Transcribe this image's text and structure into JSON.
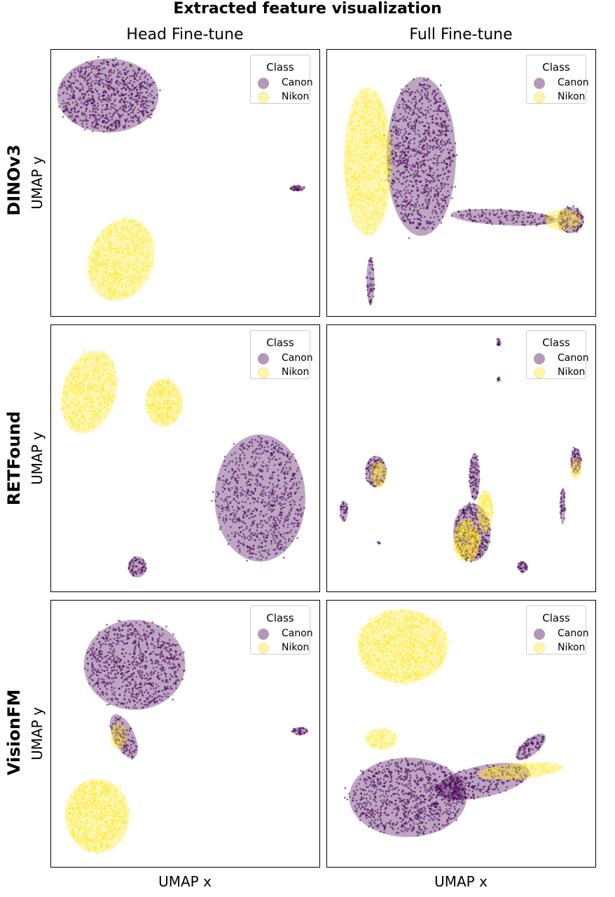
{
  "title": "Extracted feature visualization",
  "columns": [
    "Head Fine-tune",
    "Full Fine-tune"
  ],
  "rows": [
    "DINOv3",
    "RETFound",
    "VisionFM"
  ],
  "axis": {
    "xlabel": "UMAP x",
    "ylabel": "UMAP y"
  },
  "legend": {
    "title": "Class",
    "items": [
      {
        "label": "Canon",
        "color": "#440154",
        "icon": "circle-marker"
      },
      {
        "label": "Nikon",
        "color": "#fde725",
        "icon": "circle-marker"
      }
    ],
    "placement": "upper-right"
  },
  "chart_data": [
    {
      "type": "scatter",
      "title": "Head Fine-tune",
      "row": "DINOv3",
      "xlabel": "UMAP x",
      "ylabel": "UMAP y",
      "ticks": false,
      "grid": false,
      "xlim": [
        0,
        100
      ],
      "ylim": [
        0,
        100
      ],
      "series": [
        {
          "name": "Canon",
          "color": "#440154",
          "clusters": [
            {
              "cx": 21,
              "cy": 83,
              "rx": 19,
              "ry": 14,
              "n": 1500,
              "angle": 0
            },
            {
              "cx": 92,
              "cy": 48,
              "rx": 3,
              "ry": 1,
              "n": 60,
              "angle": 0
            }
          ]
        },
        {
          "name": "Nikon",
          "color": "#fde725",
          "clusters": [
            {
              "cx": 26,
              "cy": 21,
              "rx": 12,
              "ry": 16,
              "n": 950,
              "angle": -20
            }
          ]
        }
      ]
    },
    {
      "type": "scatter",
      "title": "Full Fine-tune",
      "row": "DINOv3",
      "xlabel": "UMAP x",
      "ylabel": "UMAP y",
      "ticks": false,
      "grid": false,
      "xlim": [
        0,
        100
      ],
      "ylim": [
        0,
        100
      ],
      "series": [
        {
          "name": "Canon",
          "color": "#440154",
          "clusters": [
            {
              "cx": 35,
              "cy": 60,
              "rx": 13,
              "ry": 30,
              "n": 1800,
              "angle": 0
            },
            {
              "cx": 66,
              "cy": 37,
              "rx": 20,
              "ry": 3,
              "n": 260,
              "angle": -3
            },
            {
              "cx": 91,
              "cy": 36,
              "rx": 5,
              "ry": 5,
              "n": 200,
              "angle": 0
            },
            {
              "cx": 16,
              "cy": 13,
              "rx": 1.5,
              "ry": 9,
              "n": 80,
              "angle": 0
            }
          ]
        },
        {
          "name": "Nikon",
          "color": "#fde725",
          "clusters": [
            {
              "cx": 15,
              "cy": 58,
              "rx": 9,
              "ry": 28,
              "n": 1100,
              "angle": 0
            },
            {
              "cx": 88,
              "cy": 36,
              "rx": 7,
              "ry": 4,
              "n": 90,
              "angle": 0
            }
          ]
        }
      ]
    },
    {
      "type": "scatter",
      "title": "Head Fine-tune",
      "row": "RETFound",
      "xlabel": "UMAP x",
      "ylabel": "UMAP y",
      "ticks": false,
      "grid": false,
      "xlim": [
        0,
        100
      ],
      "ylim": [
        0,
        100
      ],
      "series": [
        {
          "name": "Canon",
          "color": "#440154",
          "clusters": [
            {
              "cx": 78,
              "cy": 35,
              "rx": 17,
              "ry": 24,
              "n": 1500,
              "angle": 0
            },
            {
              "cx": 32,
              "cy": 9,
              "rx": 3.5,
              "ry": 4,
              "n": 120,
              "angle": 0
            }
          ]
        },
        {
          "name": "Nikon",
          "color": "#fde725",
          "clusters": [
            {
              "cx": 14,
              "cy": 75,
              "rx": 10,
              "ry": 16,
              "n": 800,
              "angle": -15
            },
            {
              "cx": 42,
              "cy": 71,
              "rx": 7,
              "ry": 9,
              "n": 450,
              "angle": 0
            }
          ]
        }
      ]
    },
    {
      "type": "scatter",
      "title": "Full Fine-tune",
      "row": "RETFound",
      "xlabel": "UMAP x",
      "ylabel": "UMAP y",
      "ticks": false,
      "grid": false,
      "xlim": [
        0,
        100
      ],
      "ylim": [
        0,
        100
      ],
      "series": [
        {
          "name": "Canon",
          "color": "#440154",
          "clusters": [
            {
              "cx": 54,
              "cy": 22,
              "rx": 7,
              "ry": 11,
              "n": 700,
              "angle": 0
            },
            {
              "cx": 55,
              "cy": 43,
              "rx": 2,
              "ry": 9,
              "n": 150,
              "angle": 0
            },
            {
              "cx": 18,
              "cy": 45,
              "rx": 4,
              "ry": 6,
              "n": 180,
              "angle": 0
            },
            {
              "cx": 93,
              "cy": 49,
              "rx": 2,
              "ry": 5,
              "n": 110,
              "angle": 0
            },
            {
              "cx": 88,
              "cy": 32,
              "rx": 1,
              "ry": 7,
              "n": 60,
              "angle": 0
            },
            {
              "cx": 6,
              "cy": 30,
              "rx": 1.5,
              "ry": 4,
              "n": 50,
              "angle": 0
            },
            {
              "cx": 73,
              "cy": 9,
              "rx": 2,
              "ry": 2,
              "n": 60,
              "angle": 0
            },
            {
              "cx": 64,
              "cy": 94,
              "rx": 0.8,
              "ry": 1.5,
              "n": 25,
              "angle": 0
            },
            {
              "cx": 64,
              "cy": 80,
              "rx": 0.6,
              "ry": 0.8,
              "n": 12,
              "angle": 0
            },
            {
              "cx": 19,
              "cy": 18,
              "rx": 0.6,
              "ry": 0.6,
              "n": 8,
              "angle": 0
            }
          ]
        },
        {
          "name": "Nikon",
          "color": "#fde725",
          "clusters": [
            {
              "cx": 52,
              "cy": 19,
              "rx": 5,
              "ry": 8,
              "n": 420,
              "angle": 0
            },
            {
              "cx": 59,
              "cy": 30,
              "rx": 3,
              "ry": 8,
              "n": 160,
              "angle": 0
            },
            {
              "cx": 19,
              "cy": 44,
              "rx": 3,
              "ry": 5,
              "n": 70,
              "angle": 0
            },
            {
              "cx": 93,
              "cy": 46,
              "rx": 2,
              "ry": 4,
              "n": 35,
              "angle": 0
            }
          ]
        }
      ]
    },
    {
      "type": "scatter",
      "title": "Head Fine-tune",
      "row": "VisionFM",
      "xlabel": "UMAP x",
      "ylabel": "UMAP y",
      "ticks": false,
      "grid": false,
      "xlim": [
        0,
        100
      ],
      "ylim": [
        0,
        100
      ],
      "series": [
        {
          "name": "Canon",
          "color": "#440154",
          "clusters": [
            {
              "cx": 31,
              "cy": 76,
              "rx": 19,
              "ry": 17,
              "n": 1500,
              "angle": 0
            },
            {
              "cx": 27,
              "cy": 49,
              "rx": 4,
              "ry": 9,
              "n": 200,
              "angle": 25
            },
            {
              "cx": 93,
              "cy": 51,
              "rx": 3,
              "ry": 1.5,
              "n": 60,
              "angle": 0
            }
          ]
        },
        {
          "name": "Nikon",
          "color": "#fde725",
          "clusters": [
            {
              "cx": 17,
              "cy": 19,
              "rx": 12,
              "ry": 14,
              "n": 1100,
              "angle": 0
            },
            {
              "cx": 25,
              "cy": 49,
              "rx": 3,
              "ry": 5,
              "n": 40,
              "angle": 0
            }
          ]
        }
      ]
    },
    {
      "type": "scatter",
      "title": "Full Fine-tune",
      "row": "VisionFM",
      "xlabel": "UMAP x",
      "ylabel": "UMAP y",
      "ticks": false,
      "grid": false,
      "xlim": [
        0,
        100
      ],
      "ylim": [
        0,
        100
      ],
      "series": [
        {
          "name": "Canon",
          "color": "#440154",
          "clusters": [
            {
              "cx": 30,
              "cy": 26,
              "rx": 22,
              "ry": 15,
              "n": 1700,
              "angle": 0
            },
            {
              "cx": 58,
              "cy": 32,
              "rx": 18,
              "ry": 6,
              "n": 500,
              "angle": 12
            },
            {
              "cx": 76,
              "cy": 45,
              "rx": 7,
              "ry": 3,
              "n": 160,
              "angle": 40
            }
          ]
        },
        {
          "name": "Nikon",
          "color": "#fde725",
          "clusters": [
            {
              "cx": 28,
              "cy": 83,
              "rx": 17,
              "ry": 14,
              "n": 1400,
              "angle": 0
            },
            {
              "cx": 72,
              "cy": 36,
              "rx": 16,
              "ry": 3,
              "n": 260,
              "angle": 5
            },
            {
              "cx": 20,
              "cy": 48,
              "rx": 6,
              "ry": 4,
              "n": 90,
              "angle": 0
            }
          ]
        }
      ]
    }
  ]
}
